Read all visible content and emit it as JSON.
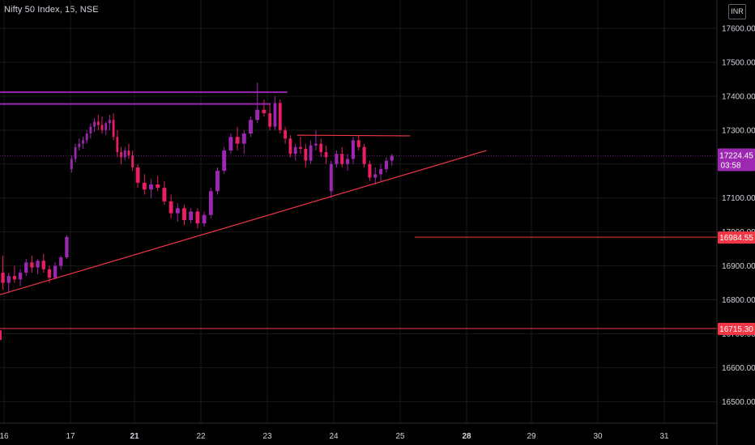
{
  "header": {
    "title": "Nifty 50 Index, 15, NSE",
    "currency": "INR"
  },
  "colors": {
    "background": "#000000",
    "grid": "#1a1a1a",
    "axis_text": "#d1d4dc",
    "candle_up": "#9c27b0",
    "candle_down": "#e91e63",
    "resistance_lines": "#9c27b0",
    "trend_lines": "#f23645",
    "price_label": "#9c27b0",
    "level_label": "#f23645"
  },
  "chart_data": {
    "type": "candlestick",
    "y_axis": {
      "min": 16400,
      "max": 17680,
      "ticks": [
        "17600.00",
        "17500.00",
        "17400.00",
        "17300.00",
        "17200.00",
        "17100.00",
        "17000.00",
        "16900.00",
        "16800.00",
        "16700.00",
        "16600.00",
        "16500.00"
      ]
    },
    "x_axis": {
      "ticks": [
        {
          "label": "16",
          "bold": false
        },
        {
          "label": "17",
          "bold": false
        },
        {
          "label": "21",
          "bold": true
        },
        {
          "label": "22",
          "bold": false
        },
        {
          "label": "23",
          "bold": false
        },
        {
          "label": "24",
          "bold": false
        },
        {
          "label": "25",
          "bold": false
        },
        {
          "label": "28",
          "bold": true
        },
        {
          "label": "29",
          "bold": false
        },
        {
          "label": "30",
          "bold": false
        },
        {
          "label": "31",
          "bold": false
        }
      ]
    },
    "current_price": {
      "value": 17224.45,
      "label": "17224.45",
      "countdown": "03:58"
    },
    "levels": [
      {
        "value": 16984.55,
        "label": "16984.55"
      },
      {
        "value": 16715.3,
        "label": "16715.30"
      }
    ],
    "resistance_lines": [
      {
        "from": {
          "session": 0,
          "price": 17412
        },
        "to": {
          "session": 4.3,
          "price": 17412
        }
      },
      {
        "from": {
          "session": 0,
          "price": 17377
        },
        "to": {
          "session": 4.05,
          "price": 17377
        }
      }
    ],
    "trend_lines": [
      {
        "from": {
          "session": 0,
          "price": 16815
        },
        "to": {
          "session": 7.3,
          "price": 17240
        }
      },
      {
        "from": {
          "session": 4.45,
          "price": 17285
        },
        "to": {
          "session": 6.15,
          "price": 17283
        }
      }
    ],
    "candles": [
      [
        16880,
        16930,
        16830,
        16850
      ],
      [
        16850,
        16880,
        16820,
        16870
      ],
      [
        16870,
        16900,
        16850,
        16860
      ],
      [
        16860,
        16890,
        16840,
        16880
      ],
      [
        16880,
        16920,
        16870,
        16910
      ],
      [
        16910,
        16930,
        16880,
        16895
      ],
      [
        16895,
        16920,
        16875,
        16915
      ],
      [
        16915,
        16935,
        16880,
        16890
      ],
      [
        16890,
        16900,
        16850,
        16865
      ],
      [
        16865,
        16910,
        16860,
        16900
      ],
      [
        16900,
        16930,
        16890,
        16925
      ],
      [
        16925,
        16990,
        16920,
        16985
      ],
      [
        17185,
        17225,
        17175,
        17215
      ],
      [
        17215,
        17260,
        17205,
        17250
      ],
      [
        17250,
        17275,
        17240,
        17260
      ],
      [
        17260,
        17280,
        17245,
        17270
      ],
      [
        17270,
        17300,
        17260,
        17290
      ],
      [
        17290,
        17320,
        17275,
        17310
      ],
      [
        17310,
        17335,
        17295,
        17325
      ],
      [
        17325,
        17345,
        17300,
        17315
      ],
      [
        17315,
        17340,
        17290,
        17300
      ],
      [
        17300,
        17325,
        17285,
        17320
      ],
      [
        17320,
        17345,
        17300,
        17330
      ],
      [
        17330,
        17350,
        17270,
        17280
      ],
      [
        17280,
        17300,
        17220,
        17235
      ],
      [
        17235,
        17250,
        17200,
        17220
      ],
      [
        17220,
        17250,
        17210,
        17240
      ],
      [
        17240,
        17260,
        17215,
        17225
      ],
      [
        17225,
        17240,
        17180,
        17190
      ],
      [
        17190,
        17200,
        17130,
        17145
      ],
      [
        17145,
        17170,
        17110,
        17125
      ],
      [
        17125,
        17155,
        17100,
        17140
      ],
      [
        17140,
        17165,
        17120,
        17130
      ],
      [
        17130,
        17150,
        17080,
        17090
      ],
      [
        17090,
        17110,
        17040,
        17055
      ],
      [
        17055,
        17085,
        17030,
        17070
      ],
      [
        17070,
        17080,
        17020,
        17035
      ],
      [
        17035,
        17070,
        17025,
        17060
      ],
      [
        17060,
        17070,
        17010,
        17025
      ],
      [
        17025,
        17060,
        17015,
        17050
      ],
      [
        17050,
        17130,
        17040,
        17120
      ],
      [
        17120,
        17190,
        17110,
        17180
      ],
      [
        17180,
        17250,
        17170,
        17240
      ],
      [
        17240,
        17290,
        17230,
        17280
      ],
      [
        17280,
        17310,
        17240,
        17260
      ],
      [
        17260,
        17300,
        17230,
        17290
      ],
      [
        17290,
        17340,
        17280,
        17330
      ],
      [
        17330,
        17440,
        17320,
        17360
      ],
      [
        17360,
        17390,
        17340,
        17350
      ],
      [
        17350,
        17380,
        17300,
        17310
      ],
      [
        17310,
        17400,
        17300,
        17380
      ],
      [
        17380,
        17390,
        17290,
        17300
      ],
      [
        17300,
        17310,
        17260,
        17275
      ],
      [
        17275,
        17285,
        17220,
        17230
      ],
      [
        17230,
        17260,
        17210,
        17250
      ],
      [
        17250,
        17280,
        17230,
        17245
      ],
      [
        17245,
        17260,
        17190,
        17210
      ],
      [
        17210,
        17270,
        17200,
        17255
      ],
      [
        17255,
        17300,
        17240,
        17260
      ],
      [
        17260,
        17275,
        17220,
        17235
      ],
      [
        17235,
        17255,
        17200,
        17220
      ],
      [
        17120,
        17210,
        17100,
        17200
      ],
      [
        17200,
        17240,
        17190,
        17230
      ],
      [
        17230,
        17250,
        17190,
        17200
      ],
      [
        17200,
        17230,
        17180,
        17215
      ],
      [
        17215,
        17280,
        17200,
        17270
      ],
      [
        17270,
        17285,
        17240,
        17250
      ],
      [
        17250,
        17260,
        17190,
        17200
      ],
      [
        17200,
        17210,
        17150,
        17160
      ],
      [
        17160,
        17190,
        17140,
        17170
      ],
      [
        17170,
        17200,
        17150,
        17185
      ],
      [
        17185,
        17220,
        17175,
        17210
      ],
      [
        17210,
        17230,
        17195,
        17224.45
      ]
    ]
  }
}
